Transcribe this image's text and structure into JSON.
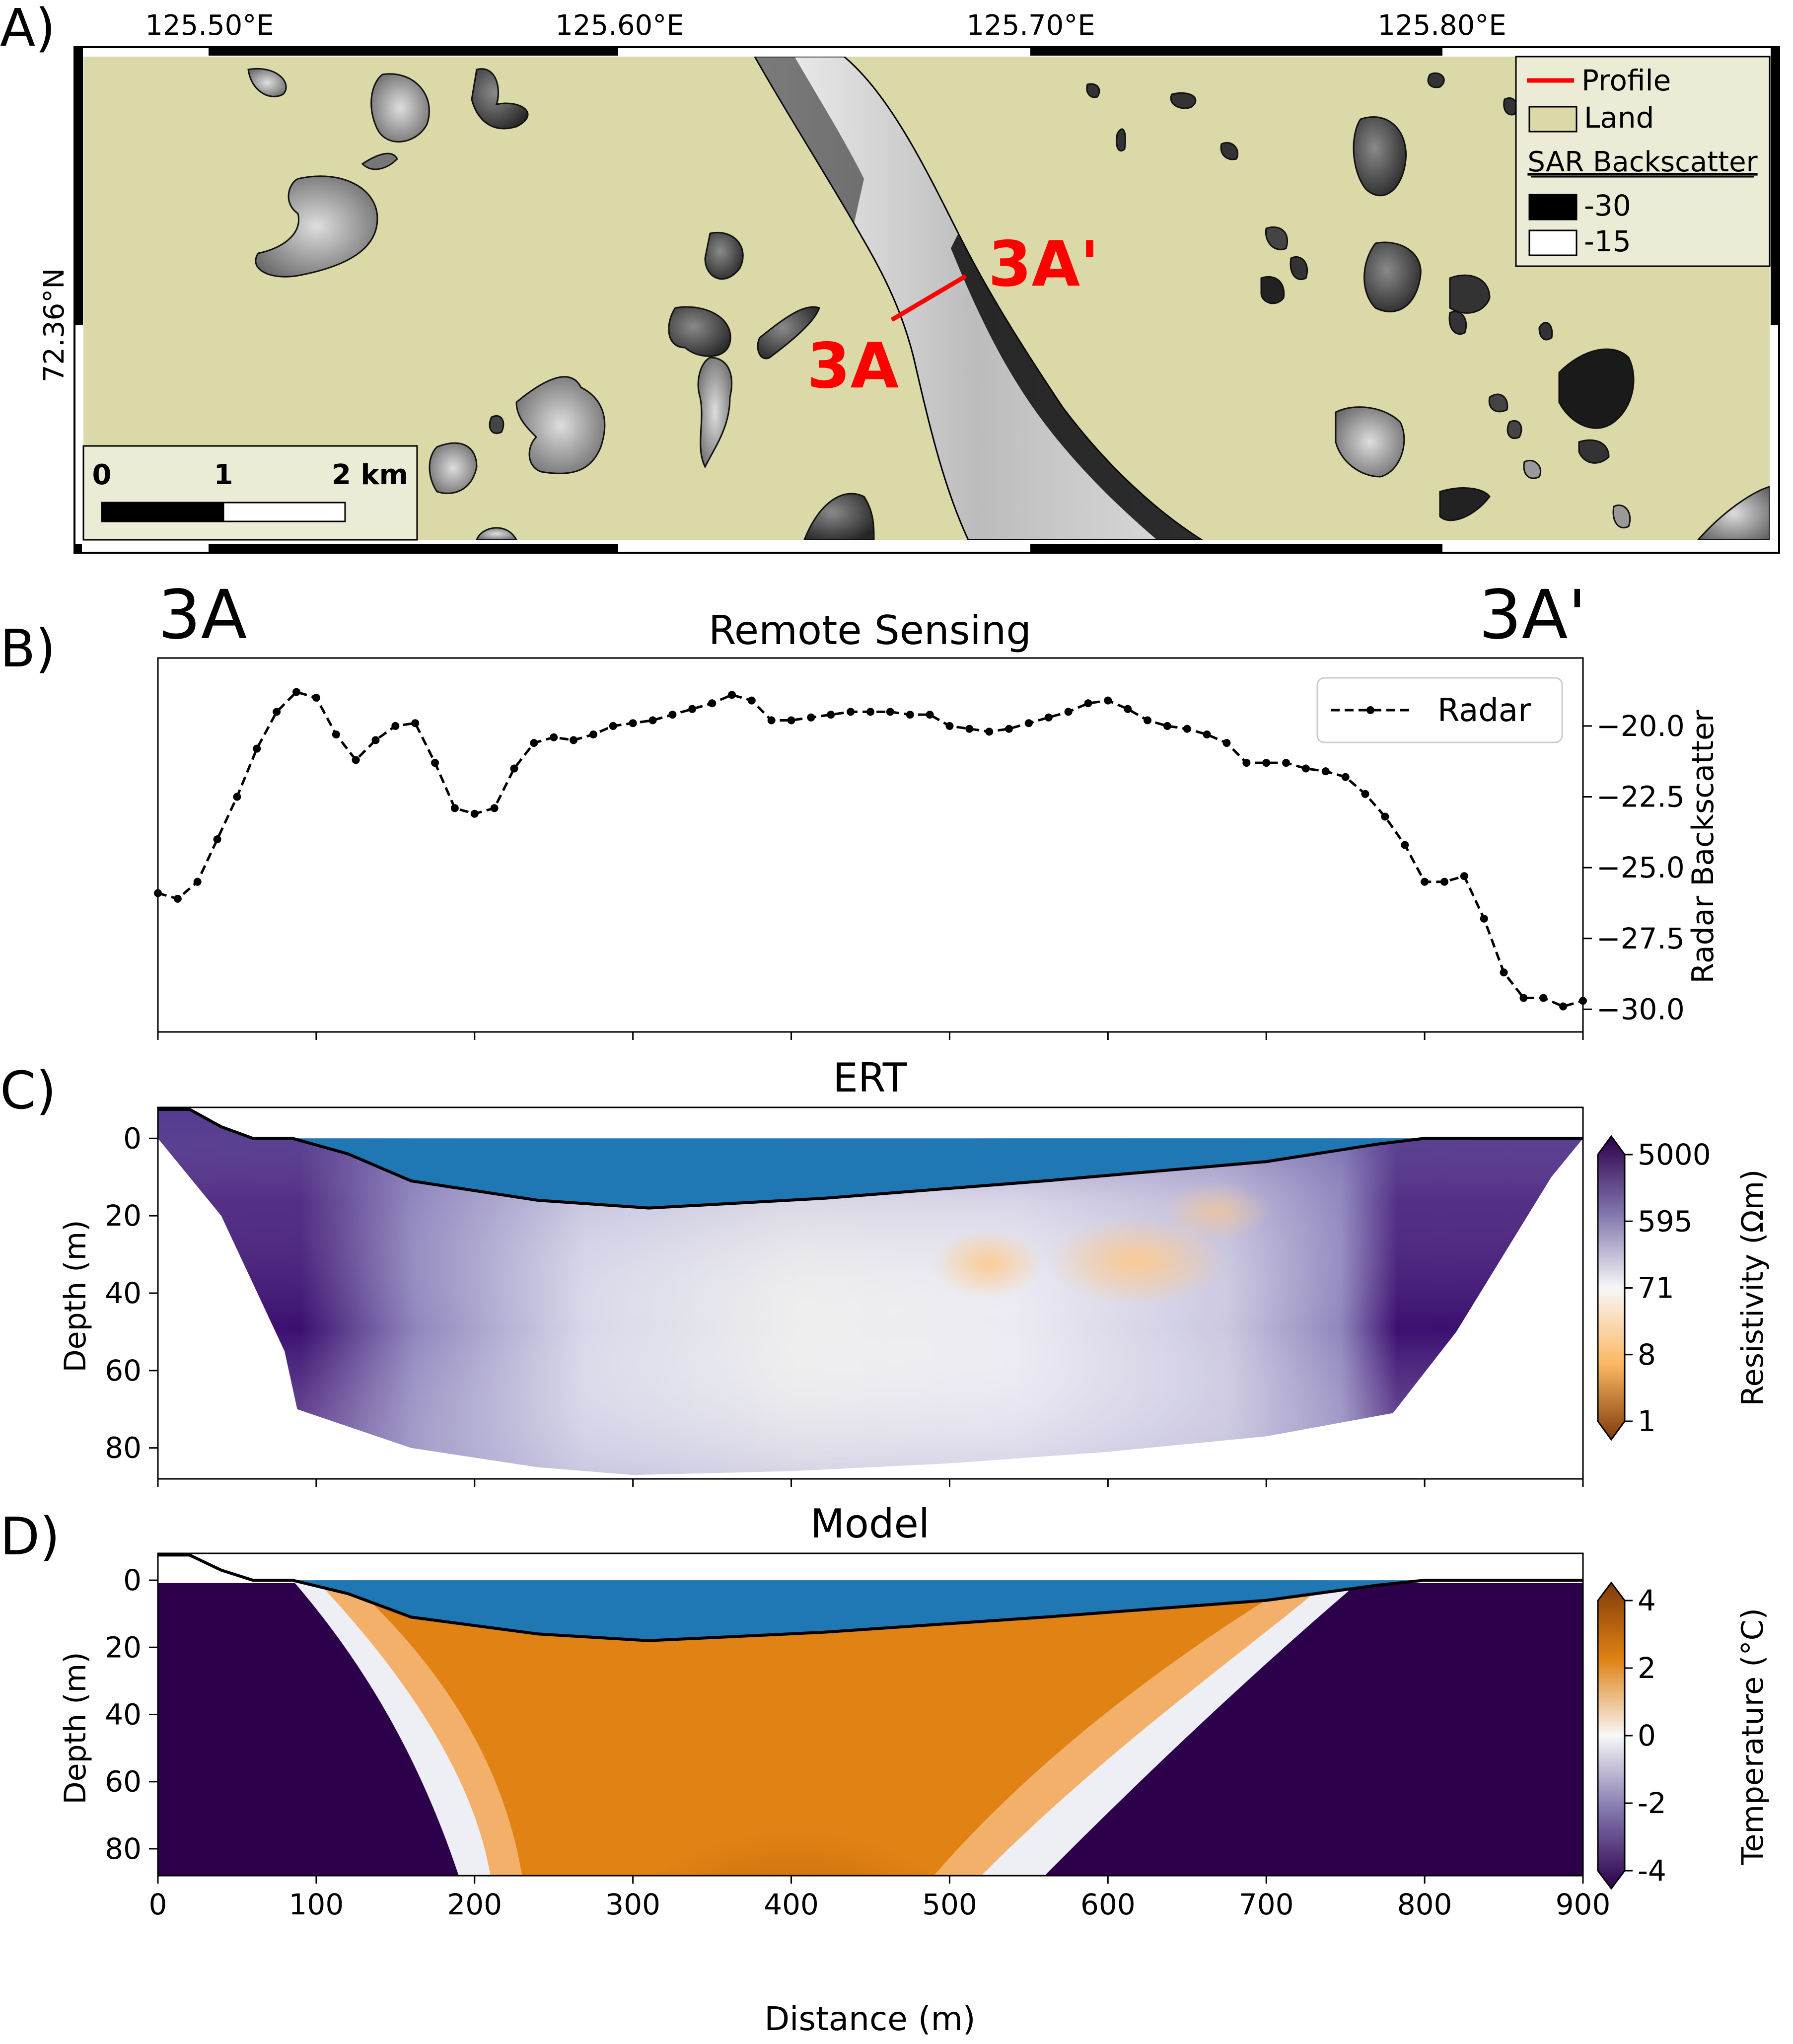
{
  "panels": {
    "a": {
      "letter": "A)",
      "lon_ticks": [
        "125.50°E",
        "125.60°E",
        "125.70°E",
        "125.80°E"
      ],
      "lat_tick": "72.36°N",
      "profile_start": "3A",
      "profile_end": "3A'",
      "legend": {
        "profile": "Profile",
        "land": "Land",
        "sar_title": "SAR Backscatter",
        "sar_min": "-30",
        "sar_max": "-15"
      },
      "scalebar": {
        "labels": [
          "0",
          "1",
          "2 km"
        ]
      },
      "colors": {
        "land": "#dcd9a8",
        "profile": "#ff0000",
        "text_red": "#ff0000"
      }
    },
    "b": {
      "letter": "B)",
      "title": "Remote Sensing",
      "start_label": "3A",
      "end_label": "3A'"
    },
    "c": {
      "letter": "C)",
      "title": "ERT",
      "colors": {
        "water": "#1f77b4"
      }
    },
    "d": {
      "letter": "D)",
      "title": "Model",
      "colors": {
        "water": "#1f77b4"
      }
    }
  },
  "chart_data": [
    {
      "type": "line",
      "panel": "B",
      "title": "Remote Sensing",
      "ylabel": "Radar Backscatter",
      "xlim": [
        0,
        900
      ],
      "ylim": [
        -30.8,
        -17.6
      ],
      "yticks": [
        "−20.0",
        "−22.5",
        "−25.0",
        "−27.5",
        "−30.0"
      ],
      "ytick_values": [
        -20,
        -22.5,
        -25,
        -27.5,
        -30
      ],
      "xtick_values": [
        0,
        100,
        200,
        300,
        400,
        500,
        600,
        700,
        800,
        900
      ],
      "series": [
        {
          "name": "Radar",
          "style": "dashed-dot",
          "x": [
            0,
            12.5,
            25,
            37.5,
            50,
            62.5,
            75,
            87.5,
            100,
            112.5,
            125,
            137.5,
            150,
            162.5,
            175,
            187.5,
            200,
            212.5,
            225,
            237.5,
            250,
            262.5,
            275,
            287.5,
            300,
            312.5,
            325,
            337.5,
            350,
            362.5,
            375,
            387.5,
            400,
            412.5,
            425,
            437.5,
            450,
            462.5,
            475,
            487.5,
            500,
            512.5,
            525,
            537.5,
            550,
            562.5,
            575,
            587.5,
            600,
            612.5,
            625,
            637.5,
            650,
            662.5,
            675,
            687.5,
            700,
            712.5,
            725,
            737.5,
            750,
            762.5,
            775,
            787.5,
            800,
            812.5,
            825,
            837.5,
            850,
            862.5,
            875,
            887.5,
            900
          ],
          "values": [
            -25.9,
            -26.1,
            -25.5,
            -24.0,
            -22.5,
            -20.8,
            -19.5,
            -18.8,
            -19.0,
            -20.3,
            -21.2,
            -20.5,
            -20.0,
            -19.9,
            -21.3,
            -22.9,
            -23.1,
            -22.9,
            -21.5,
            -20.6,
            -20.4,
            -20.5,
            -20.3,
            -20.0,
            -19.9,
            -19.8,
            -19.6,
            -19.4,
            -19.2,
            -18.9,
            -19.1,
            -19.8,
            -19.8,
            -19.7,
            -19.6,
            -19.5,
            -19.5,
            -19.5,
            -19.6,
            -19.6,
            -20.0,
            -20.1,
            -20.2,
            -20.1,
            -19.9,
            -19.7,
            -19.5,
            -19.2,
            -19.1,
            -19.4,
            -19.8,
            -20.0,
            -20.1,
            -20.3,
            -20.6,
            -21.3,
            -21.3,
            -21.3,
            -21.5,
            -21.6,
            -21.8,
            -22.4,
            -23.2,
            -24.2,
            -25.5,
            -25.5,
            -25.3,
            -26.8,
            -28.7,
            -29.6,
            -29.6,
            -29.9,
            -29.7
          ]
        }
      ]
    },
    {
      "type": "heatmap",
      "panel": "C",
      "title": "ERT",
      "ylabel": "Depth (m)",
      "xlim": [
        0,
        900
      ],
      "ylim": [
        88,
        -8
      ],
      "yticks": [
        0,
        20,
        40,
        60,
        80
      ],
      "colorbar": {
        "label": "Resistivity (Ωm)",
        "ticks": [
          "5000",
          "595",
          "71",
          "8",
          "1"
        ],
        "scale": "log"
      },
      "lakebed": {
        "x": [
          85,
          120,
          160,
          240,
          310,
          420,
          560,
          700,
          770,
          800
        ],
        "depth": [
          0,
          4,
          11,
          16,
          18,
          15.5,
          11,
          6,
          1.5,
          0
        ]
      },
      "surface": {
        "x": [
          0,
          20,
          40,
          60,
          85,
          800,
          900
        ],
        "depth": [
          -7.5,
          -7.5,
          -3,
          0,
          0,
          0,
          0
        ]
      },
      "data_extent": {
        "x": [
          0,
          40,
          80,
          88,
          160,
          240,
          300,
          400,
          500,
          600,
          700,
          780,
          820,
          880,
          900
        ],
        "depth_bottom": [
          0,
          20,
          55,
          70,
          80,
          85,
          87,
          86,
          84,
          81,
          77,
          71,
          50,
          10,
          0
        ]
      }
    },
    {
      "type": "heatmap",
      "panel": "D",
      "title": "Model",
      "xlabel": "Distance (m)",
      "ylabel": "Depth (m)",
      "xlim": [
        0,
        900
      ],
      "ylim": [
        88,
        -8
      ],
      "xticks": [
        0,
        100,
        200,
        300,
        400,
        500,
        600,
        700,
        800,
        900
      ],
      "yticks": [
        0,
        20,
        40,
        60,
        80
      ],
      "colorbar": {
        "label": "Temperature ($^\\circ$C)",
        "ticks": [
          "4",
          "2",
          "0",
          "-2",
          "-4"
        ],
        "range": [
          -4,
          4
        ]
      },
      "lakebed": {
        "x": [
          85,
          120,
          160,
          240,
          310,
          420,
          560,
          700,
          770,
          800
        ],
        "depth": [
          0,
          4,
          11,
          16,
          18,
          15.5,
          11,
          6,
          1.5,
          0
        ]
      },
      "surface": {
        "x": [
          0,
          20,
          40,
          60,
          85,
          800,
          900
        ],
        "depth": [
          -7.5,
          -7.5,
          -3,
          0,
          0,
          0,
          0
        ]
      }
    }
  ]
}
